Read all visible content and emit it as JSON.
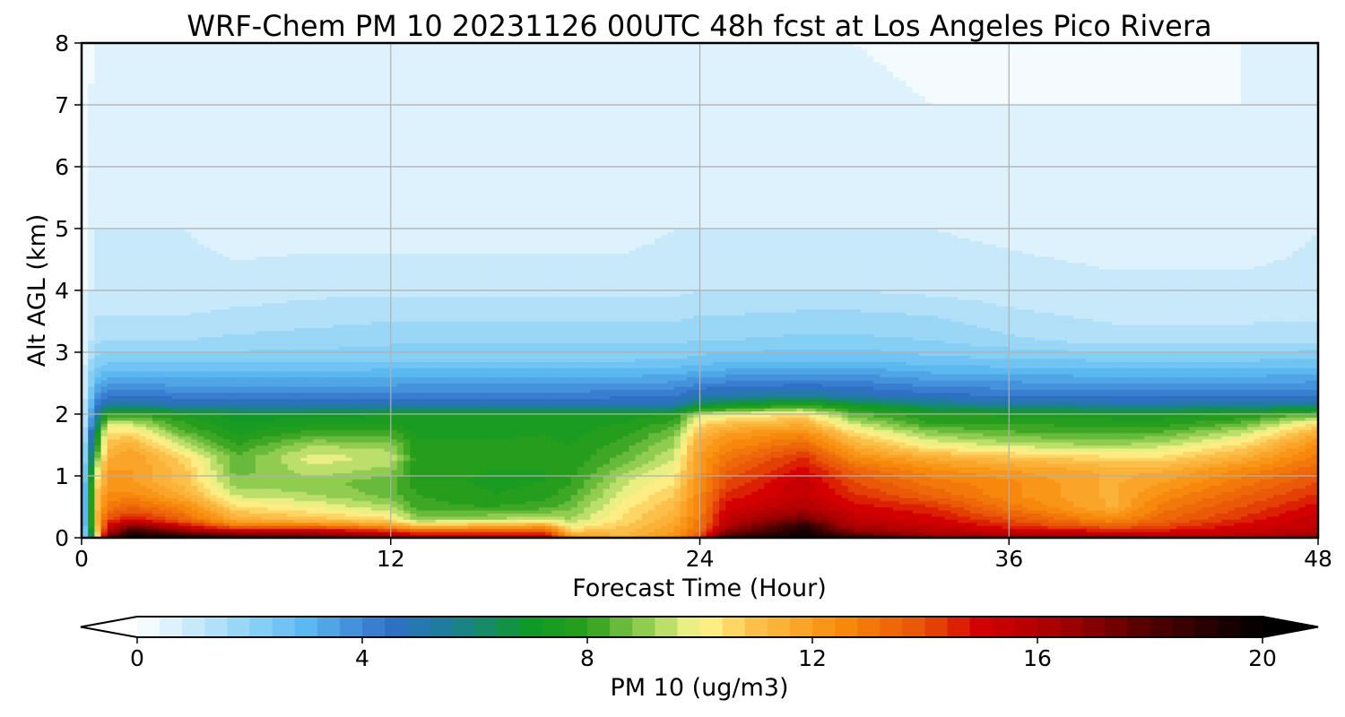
{
  "chart_data": {
    "type": "heatmap",
    "title": "WRF-Chem PM 10  20231126 00UTC 48h fcst at Los Angeles Pico Rivera",
    "xlabel": "Forecast Time (Hour)",
    "ylabel": "Alt AGL (km)",
    "xlim": [
      0,
      48
    ],
    "ylim": [
      0,
      8
    ],
    "xticks": [
      0,
      12,
      24,
      36,
      48
    ],
    "yticks": [
      0,
      1,
      2,
      3,
      4,
      5,
      6,
      7,
      8
    ],
    "grid": true,
    "colorbar": {
      "label": "PM 10  (ug/m3)",
      "min": 0,
      "max": 20,
      "ticks": [
        0,
        4,
        8,
        12,
        16,
        20
      ],
      "extend": "both",
      "orientation": "horizontal",
      "colors": [
        {
          "value": 0,
          "color": "#ffffff"
        },
        {
          "value": 2,
          "color": "#8fd3f5"
        },
        {
          "value": 3,
          "color": "#5bb8f0"
        },
        {
          "value": 4.5,
          "color": "#3070c8"
        },
        {
          "value": 5.5,
          "color": "#1e7d9a"
        },
        {
          "value": 7,
          "color": "#0f9a28"
        },
        {
          "value": 8,
          "color": "#2a9e1a"
        },
        {
          "value": 9,
          "color": "#90cc50"
        },
        {
          "value": 10,
          "color": "#fff890"
        },
        {
          "value": 11,
          "color": "#fcc04a"
        },
        {
          "value": 12.5,
          "color": "#f88c0c"
        },
        {
          "value": 14,
          "color": "#e85008"
        },
        {
          "value": 15,
          "color": "#d40000"
        },
        {
          "value": 16.5,
          "color": "#a00000"
        },
        {
          "value": 18,
          "color": "#500000"
        },
        {
          "value": 20,
          "color": "#000000"
        }
      ]
    },
    "x": [
      0,
      0.5,
      1,
      2,
      3,
      4,
      5,
      6,
      7,
      8,
      9,
      10,
      11,
      12,
      13,
      14,
      15,
      16,
      17,
      18,
      19,
      20,
      21,
      22,
      23,
      24,
      25,
      26,
      27,
      28,
      29,
      30,
      31,
      32,
      33,
      34,
      35,
      36,
      37,
      38,
      39,
      40,
      41,
      42,
      43,
      44,
      45,
      46,
      47,
      48
    ],
    "y": [
      0,
      0.1,
      0.2,
      0.3,
      0.5,
      0.7,
      0.9,
      1.1,
      1.3,
      1.5,
      1.7,
      1.85,
      2.0,
      2.15,
      2.3,
      2.5,
      2.7,
      2.9,
      3.2,
      3.6,
      4.0,
      5.0,
      6.0,
      7.0,
      8.0
    ],
    "control_points": [
      {
        "x": 0,
        "profile": [
          0.5,
          0.5,
          0.4,
          0.4,
          0.4,
          0.4,
          0.4,
          0.4,
          0.4,
          0.4,
          0.4,
          0.4,
          0.4,
          0.4,
          0.4,
          0.4,
          0.3,
          0.3,
          0.3,
          0.3,
          0.2,
          0.2,
          0.2,
          0.2,
          0.2
        ]
      },
      {
        "x": 0.5,
        "profile": [
          8,
          9,
          10,
          10.5,
          10.5,
          10.5,
          10,
          9,
          8,
          7,
          6,
          5,
          4.5,
          4,
          3.5,
          3,
          2.5,
          2,
          1.5,
          1.2,
          1,
          0.8,
          0.6,
          0.5,
          0.4
        ]
      },
      {
        "x": 1,
        "profile": [
          18,
          16,
          15,
          14,
          13,
          12.5,
          12,
          12,
          11.5,
          11,
          10.5,
          9.5,
          8,
          5.5,
          4.5,
          3.5,
          2.8,
          2.2,
          1.6,
          1.2,
          1.0,
          0.8,
          0.6,
          0.6,
          0.4
        ]
      },
      {
        "x": 2,
        "profile": [
          20,
          19,
          17,
          15,
          13.5,
          12.5,
          12,
          12,
          12,
          11.5,
          10.5,
          9.5,
          8,
          5.5,
          4.5,
          3.5,
          2.8,
          2.2,
          1.6,
          1.2,
          1.0,
          0.8,
          0.6,
          0.6,
          0.4
        ]
      },
      {
        "x": 4,
        "profile": [
          20,
          17,
          15,
          13.5,
          12.5,
          11.5,
          11,
          11,
          10.5,
          9.5,
          8.5,
          8,
          7.5,
          5,
          4.2,
          3.5,
          2.8,
          2.2,
          1.6,
          1.2,
          1.0,
          0.8,
          0.6,
          0.5,
          0.4
        ]
      },
      {
        "x": 6,
        "profile": [
          19,
          16,
          13,
          11.5,
          10.5,
          9.5,
          9,
          8.5,
          8.5,
          8,
          7.5,
          7.3,
          7,
          5,
          4.2,
          3.5,
          2.8,
          2.2,
          1.7,
          1.3,
          1.0,
          0.6,
          0.5,
          0.5,
          0.4
        ]
      },
      {
        "x": 9,
        "profile": [
          18,
          16,
          13,
          11,
          10,
          9.2,
          9,
          9.5,
          9.8,
          9.2,
          8.2,
          7.5,
          7,
          5,
          4.2,
          3.5,
          2.8,
          2.2,
          1.8,
          1.4,
          1.1,
          0.6,
          0.5,
          0.5,
          0.4
        ]
      },
      {
        "x": 12,
        "profile": [
          17,
          15,
          12,
          10.5,
          9.3,
          8.6,
          8.5,
          9,
          9.5,
          9,
          8.2,
          7.6,
          7.2,
          5,
          4.2,
          3.5,
          2.9,
          2.3,
          1.9,
          1.5,
          1.1,
          0.6,
          0.5,
          0.4,
          0.4
        ]
      },
      {
        "x": 13,
        "profile": [
          16,
          14,
          11,
          9,
          8.2,
          8,
          7.8,
          7.8,
          7.8,
          7.7,
          7.5,
          7.3,
          7.2,
          5,
          4.2,
          3.6,
          2.9,
          2.3,
          1.9,
          1.5,
          1.1,
          0.6,
          0.5,
          0.4,
          0.4
        ]
      },
      {
        "x": 16,
        "profile": [
          16,
          14,
          11.5,
          9.3,
          8,
          7.6,
          7.5,
          7.6,
          7.7,
          7.7,
          7.5,
          7.3,
          7.2,
          5,
          4.2,
          3.6,
          2.9,
          2.3,
          1.9,
          1.5,
          1.1,
          0.6,
          0.5,
          0.4,
          0.4
        ]
      },
      {
        "x": 18,
        "profile": [
          16,
          14,
          12,
          9.5,
          8.3,
          7.8,
          7.6,
          7.6,
          7.7,
          7.7,
          7.6,
          7.4,
          7.2,
          5,
          4.2,
          3.6,
          2.9,
          2.3,
          1.9,
          1.5,
          1.1,
          0.6,
          0.5,
          0.4,
          0.4
        ]
      },
      {
        "x": 19,
        "profile": [
          12.5,
          11,
          10,
          9.2,
          8.7,
          8.3,
          8,
          7.8,
          7.7,
          7.6,
          7.5,
          7.4,
          7.3,
          5,
          4.2,
          3.6,
          2.9,
          2.3,
          1.9,
          1.5,
          1.1,
          0.6,
          0.5,
          0.4,
          0.4
        ]
      },
      {
        "x": 21,
        "profile": [
          11.5,
          11,
          10.8,
          10.5,
          10.2,
          9.8,
          9.5,
          9,
          8.5,
          8.2,
          7.9,
          7.6,
          7.4,
          5,
          4.3,
          3.6,
          2.9,
          2.3,
          1.9,
          1.5,
          1.1,
          0.6,
          0.5,
          0.4,
          0.4
        ]
      },
      {
        "x": 23,
        "profile": [
          12.5,
          12,
          11.8,
          11.5,
          11.2,
          10.8,
          10.4,
          10,
          9.6,
          9.2,
          8.7,
          8.2,
          7.6,
          5.2,
          4.4,
          3.7,
          3.0,
          2.4,
          1.9,
          1.5,
          1.1,
          0.8,
          0.5,
          0.4,
          0.4
        ]
      },
      {
        "x": 24,
        "profile": [
          14,
          13.5,
          13,
          13,
          12.8,
          12.6,
          12.4,
          12.2,
          12,
          11.8,
          11.2,
          10.5,
          9.5,
          6.5,
          5,
          4,
          3.2,
          2.5,
          2.0,
          1.6,
          1.2,
          0.8,
          0.6,
          0.5,
          0.4
        ]
      },
      {
        "x": 25,
        "profile": [
          19,
          17,
          16,
          15.5,
          15,
          14.5,
          14,
          13.5,
          13,
          12.5,
          12,
          11,
          9.8,
          7,
          5.2,
          4.1,
          3.3,
          2.6,
          2.0,
          1.6,
          1.2,
          0.8,
          0.6,
          0.5,
          0.4
        ]
      },
      {
        "x": 28,
        "profile": [
          20,
          19.5,
          19,
          17.5,
          16,
          15.5,
          15.5,
          15,
          14.5,
          13.5,
          12.5,
          11.5,
          10.5,
          8,
          5.5,
          4.3,
          3.4,
          2.7,
          2.1,
          1.7,
          1.2,
          0.8,
          0.6,
          0.5,
          0.4
        ]
      },
      {
        "x": 30,
        "profile": [
          19,
          17,
          16,
          15.5,
          15,
          14.5,
          14,
          13.5,
          12.5,
          11.5,
          10.5,
          9.5,
          8.5,
          7,
          5,
          4.2,
          3.4,
          2.7,
          2.1,
          1.7,
          1.2,
          0.8,
          0.6,
          0.5,
          0.4
        ]
      },
      {
        "x": 33,
        "profile": [
          17,
          16,
          15.5,
          15,
          14.5,
          13.5,
          13,
          12.5,
          11.5,
          10,
          9,
          8,
          7.6,
          6,
          4.6,
          3.8,
          3.1,
          2.5,
          2.0,
          1.6,
          1.1,
          0.8,
          0.5,
          0.4,
          0.3
        ]
      },
      {
        "x": 36,
        "profile": [
          17,
          15.5,
          14.5,
          14,
          13,
          12.5,
          12.5,
          12,
          11,
          9.5,
          8.5,
          8,
          7.5,
          5.5,
          4.4,
          3.7,
          3.0,
          2.4,
          1.7,
          1.3,
          1.0,
          0.7,
          0.5,
          0.4,
          0.3
        ]
      },
      {
        "x": 40,
        "profile": [
          17,
          15,
          13.5,
          12.5,
          11.5,
          11.5,
          11.5,
          11.5,
          10.5,
          9.2,
          8.3,
          7.8,
          7.4,
          5.3,
          4.3,
          3.6,
          2.9,
          2.3,
          1.4,
          1.1,
          0.9,
          0.6,
          0.4,
          0.4,
          0.3
        ]
      },
      {
        "x": 42,
        "profile": [
          16,
          15,
          14,
          13.5,
          13,
          12.5,
          12,
          11.5,
          10.5,
          9.5,
          8.5,
          7.8,
          7.4,
          5.3,
          4.3,
          3.6,
          2.9,
          2.3,
          1.4,
          1.1,
          0.9,
          0.6,
          0.4,
          0.4,
          0.3
        ]
      },
      {
        "x": 45,
        "profile": [
          16,
          15.5,
          15,
          14.5,
          14,
          13.5,
          13,
          12.5,
          11.5,
          10.5,
          9.5,
          8.5,
          7.6,
          5.5,
          4.4,
          3.6,
          2.9,
          2.3,
          1.4,
          1.1,
          0.9,
          0.6,
          0.5,
          0.4,
          0.4
        ]
      },
      {
        "x": 48,
        "profile": [
          17,
          16,
          15.5,
          15.5,
          15,
          14.5,
          14,
          13.5,
          13,
          12.5,
          11.5,
          10.5,
          8.5,
          5.8,
          4.5,
          3.7,
          3.0,
          2.4,
          1.5,
          1.1,
          0.9,
          0.8,
          0.6,
          0.5,
          0.4
        ]
      }
    ]
  }
}
